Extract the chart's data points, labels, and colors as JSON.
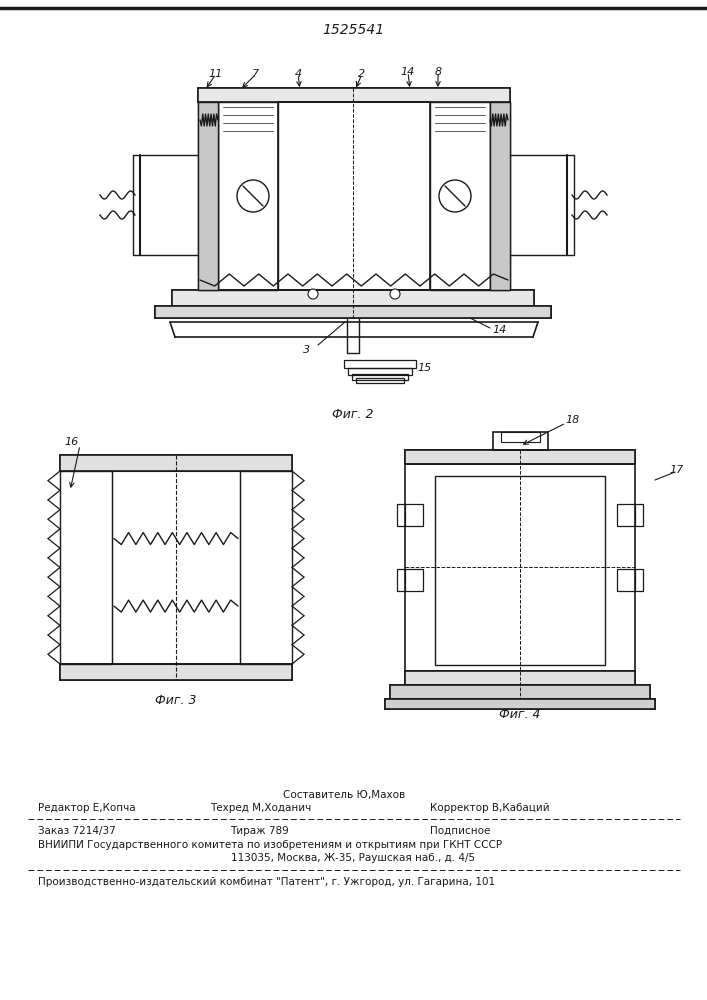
{
  "patent_number": "1525541",
  "background_color": "#ffffff",
  "line_color": "#1a1a1a",
  "fig2_caption": "Фиг. 2",
  "fig3_caption": "Фиг. 3",
  "fig4_caption": "Фиг. 4",
  "footer_line0_mid": "Составитель Ю,Махов",
  "footer_line1_left": "Редактор Е,Копча",
  "footer_line1_mid": "Техред М,Ходанич",
  "footer_line1_right": "Корректор В,Кабаций",
  "footer_order": "Заказ 7214/37",
  "footer_tirazh": "Тираж 789",
  "footer_podpisnoe": "Подписное",
  "footer_vniipи": "ВНИИПИ Государственного комитета по изобретениям и открытиям при ГКНТ СССР",
  "footer_address": "113035, Москва, Ж-35, Раушская наб., д. 4/5",
  "footer_producer": "Производственно-издательский комбинат \"Патент\", г. Ужгород, ул. Гагарина, 101"
}
